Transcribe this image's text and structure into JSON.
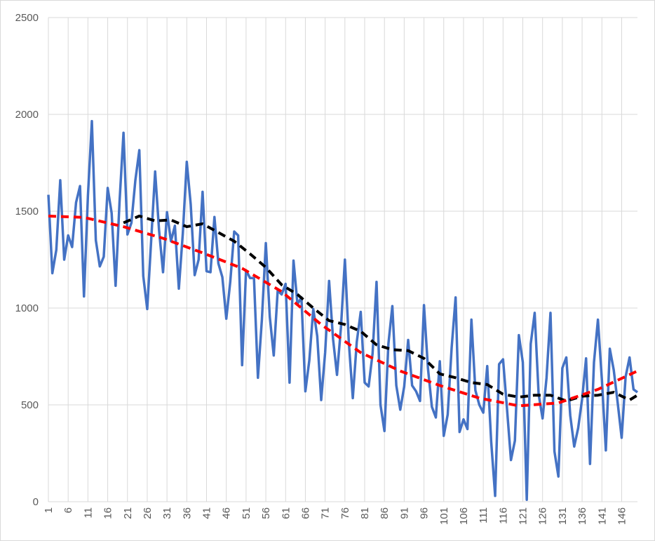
{
  "chart_data": {
    "type": "line",
    "title": "",
    "xlabel": "",
    "ylabel": "",
    "ylim": [
      0,
      2500
    ],
    "yticks": [
      0,
      500,
      1000,
      1500,
      2000,
      2500
    ],
    "ytick_labels": [
      "0",
      "500",
      "1000",
      "1500",
      "2000",
      "2500"
    ],
    "xlim": [
      1,
      150
    ],
    "xtick_values": [
      1,
      6,
      11,
      16,
      21,
      26,
      31,
      36,
      41,
      46,
      51,
      56,
      61,
      66,
      71,
      76,
      81,
      86,
      91,
      96,
      101,
      106,
      111,
      116,
      121,
      126,
      131,
      136,
      141,
      146
    ],
    "xtick_labels": [
      "1",
      "6",
      "11",
      "16",
      "21",
      "26",
      "31",
      "36",
      "41",
      "46",
      "51",
      "56",
      "61",
      "66",
      "71",
      "76",
      "81",
      "86",
      "91",
      "96",
      "101",
      "106",
      "111",
      "116",
      "121",
      "126",
      "131",
      "136",
      "141",
      "146"
    ],
    "grid": "vertical and horizontal",
    "legend": "none",
    "series": [
      {
        "style": "solid",
        "color": "#4472c4",
        "values": [
          1585,
          1180,
          1300,
          1660,
          1250,
          1375,
          1315,
          1545,
          1630,
          1060,
          1580,
          1965,
          1350,
          1215,
          1265,
          1620,
          1490,
          1115,
          1550,
          1905,
          1380,
          1440,
          1660,
          1815,
          1165,
          995,
          1350,
          1705,
          1400,
          1185,
          1495,
          1345,
          1425,
          1100,
          1385,
          1755,
          1535,
          1170,
          1250,
          1600,
          1190,
          1185,
          1470,
          1230,
          1160,
          945,
          1135,
          1395,
          1375,
          705,
          1195,
          1155,
          1155,
          640,
          940,
          1335,
          955,
          755,
          1090,
          1070,
          1125,
          615,
          1245,
          1020,
          1055,
          570,
          730,
          995,
          855,
          525,
          770,
          1140,
          840,
          655,
          900,
          1250,
          820,
          535,
          825,
          980,
          615,
          595,
          765,
          1135,
          500,
          365,
          815,
          1010,
          600,
          475,
          595,
          835,
          600,
          570,
          520,
          1015,
          690,
          490,
          435,
          725,
          340,
          450,
          795,
          1055,
          360,
          425,
          375,
          940,
          575,
          500,
          460,
          700,
          310,
          30,
          710,
          735,
          480,
          215,
          315,
          860,
          720,
          10,
          815,
          975,
          555,
          430,
          640,
          975,
          260,
          130,
          690,
          745,
          445,
          285,
          380,
          530,
          740,
          195,
          720,
          940,
          630,
          265,
          790,
          680,
          510,
          330,
          645,
          745,
          580,
          565
        ]
      },
      {
        "style": "dashed",
        "color": "#000000",
        "x": [
          20,
          24,
          28,
          32,
          36,
          40,
          44,
          48,
          52,
          56,
          60,
          64,
          68,
          72,
          76,
          80,
          84,
          88,
          92,
          96,
          100,
          104,
          108,
          112,
          116,
          120,
          124,
          128,
          132,
          136,
          140,
          144,
          148,
          150
        ],
        "values": [
          1440,
          1475,
          1450,
          1455,
          1420,
          1435,
          1390,
          1345,
          1280,
          1210,
          1120,
          1070,
          1000,
          935,
          915,
          880,
          810,
          785,
          780,
          740,
          660,
          640,
          615,
          605,
          555,
          540,
          550,
          550,
          520,
          545,
          550,
          565,
          525,
          550
        ]
      },
      {
        "style": "dashed",
        "color": "#ff0000",
        "x": [
          1,
          10,
          20,
          30,
          40,
          50,
          60,
          70,
          80,
          90,
          100,
          110,
          120,
          130,
          140,
          150
        ],
        "values": [
          1475,
          1468,
          1420,
          1360,
          1285,
          1205,
          1085,
          915,
          770,
          675,
          600,
          535,
          495,
          510,
          580,
          675
        ]
      }
    ]
  }
}
